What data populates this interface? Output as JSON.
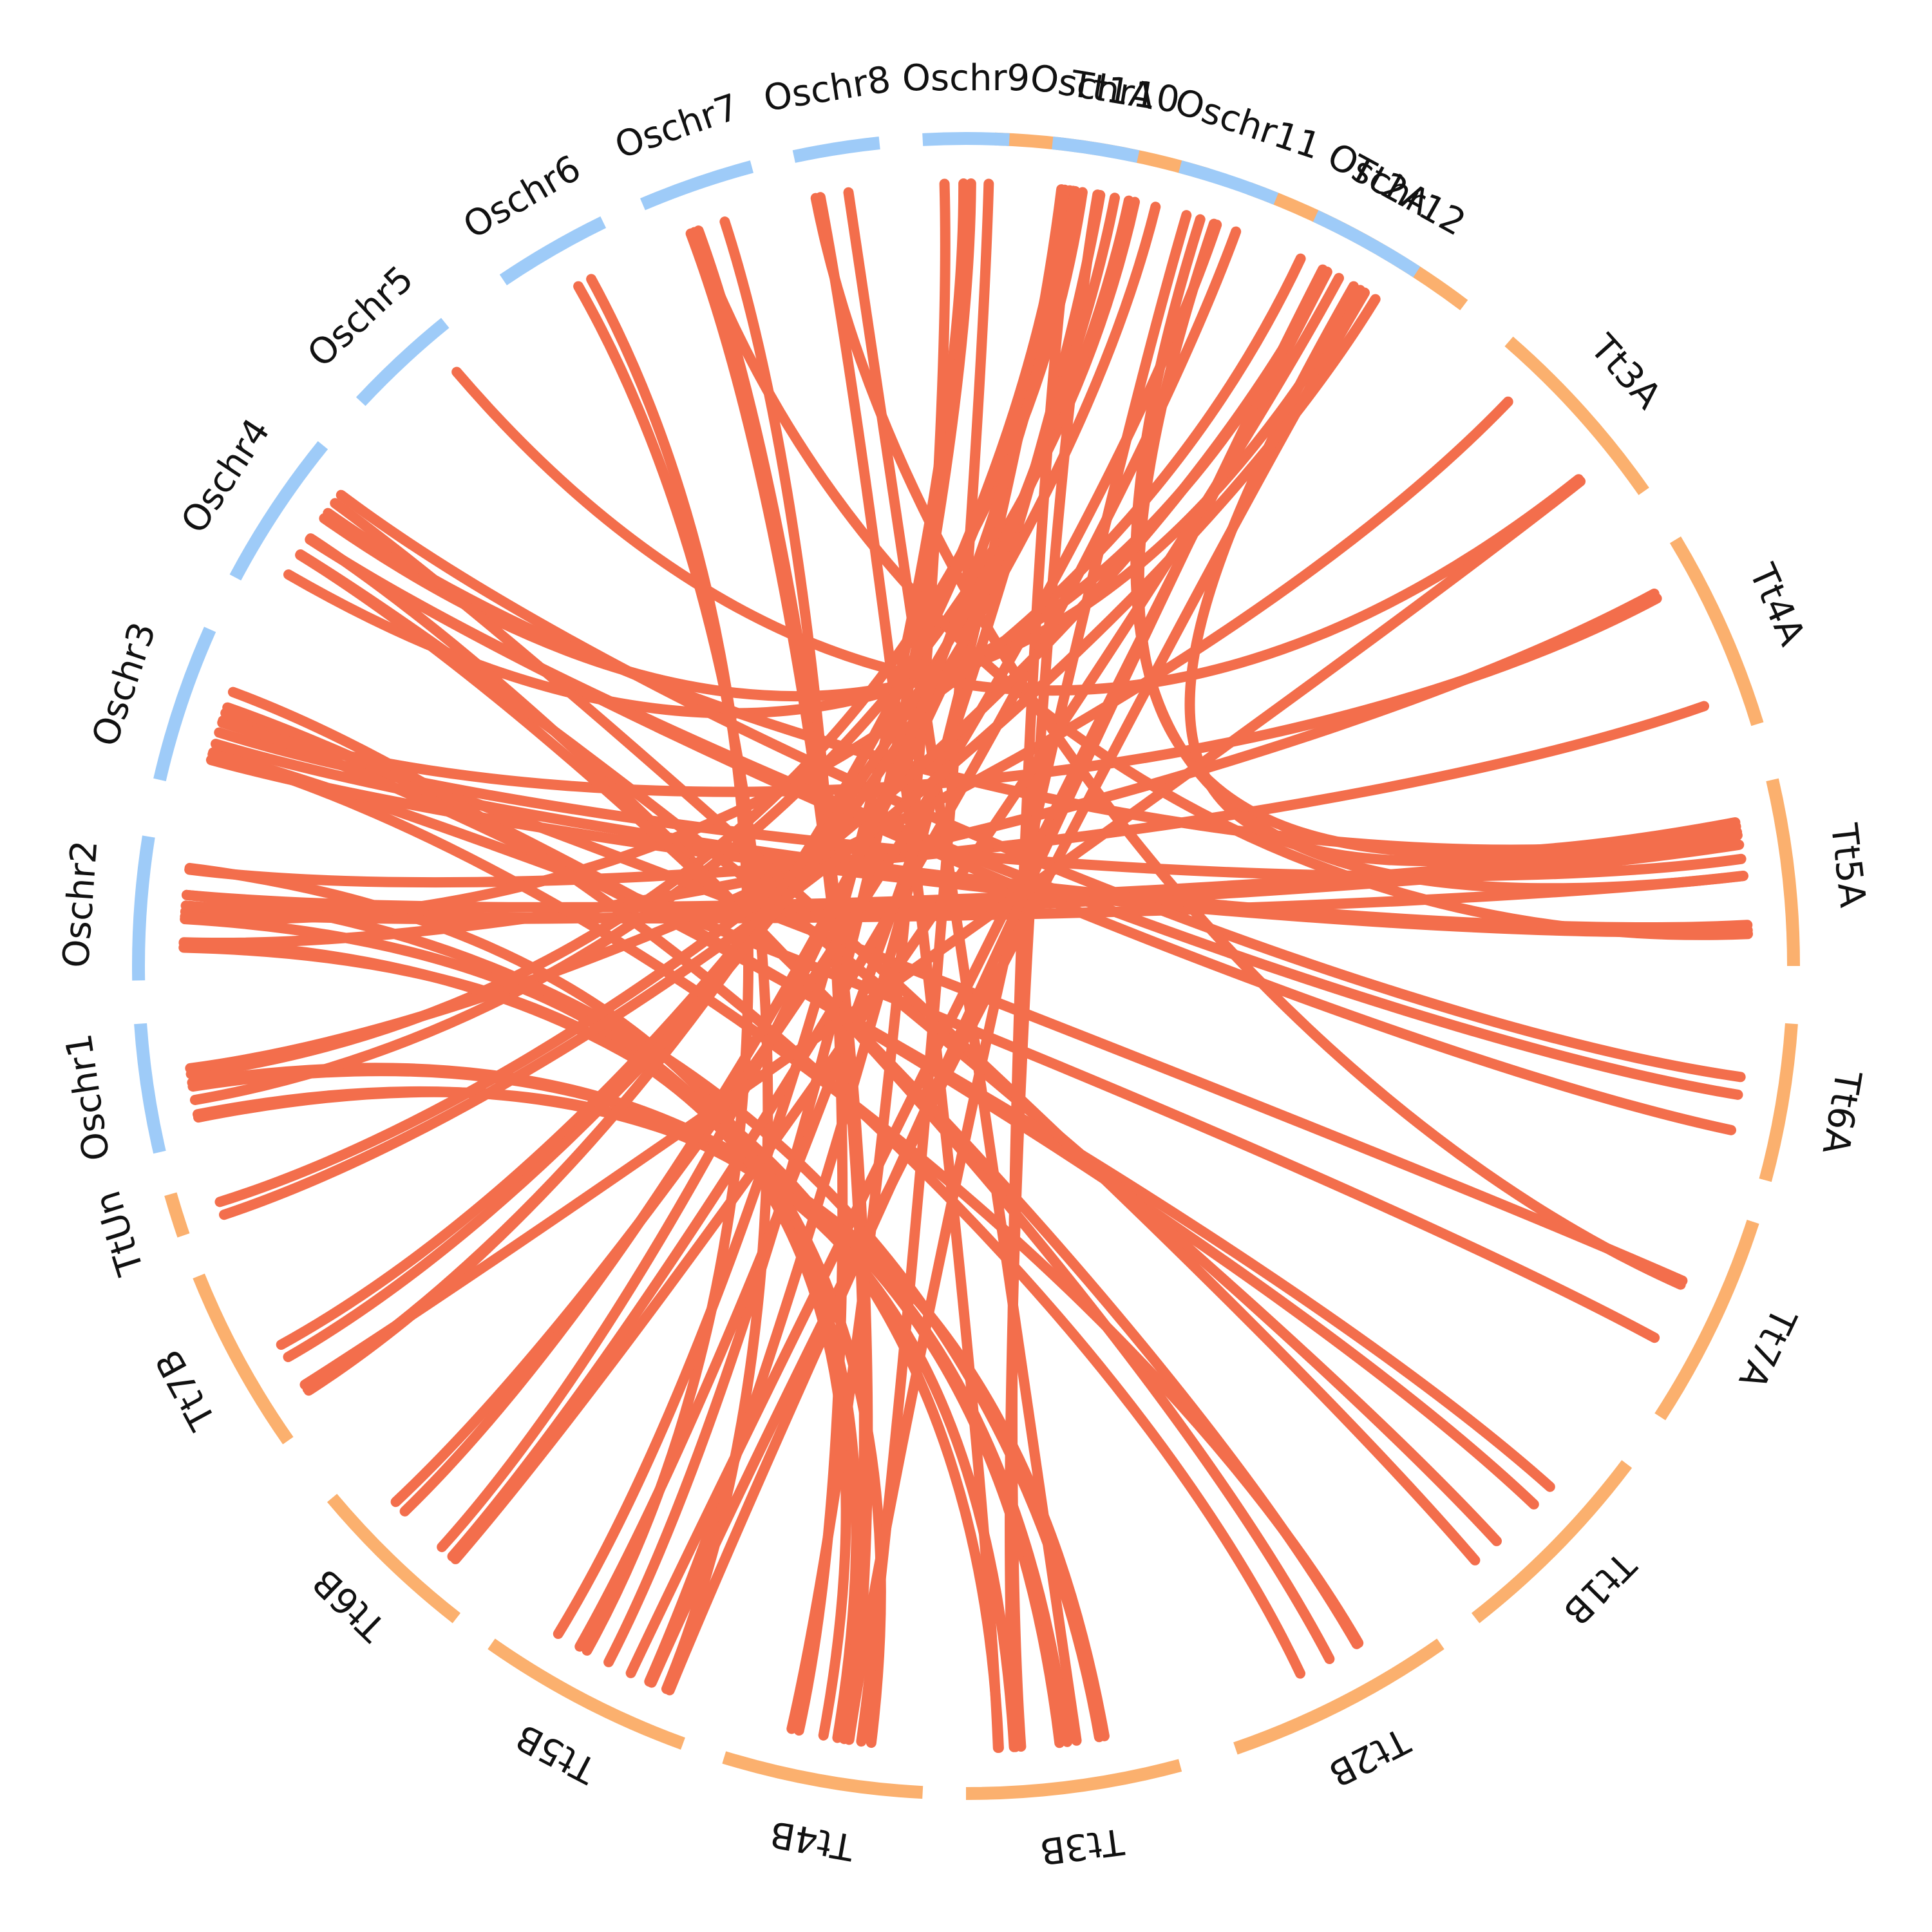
{
  "chart_data": {
    "type": "circos",
    "colors": {
      "rice_chromosomes": "#9ecbf8",
      "wheat_chromosomes": "#fbb06e",
      "links": "#f36e4c",
      "labels": "#111111"
    },
    "chromosomes": [
      {
        "label": "Tt1A",
        "group": "wheat"
      },
      {
        "label": "Tt2A",
        "group": "wheat"
      },
      {
        "label": "Tt3A",
        "group": "wheat"
      },
      {
        "label": "Tt4A",
        "group": "wheat"
      },
      {
        "label": "Tt5A",
        "group": "wheat"
      },
      {
        "label": "Tt6A",
        "group": "wheat"
      },
      {
        "label": "Tt7A",
        "group": "wheat"
      },
      {
        "label": "Tt1B",
        "group": "wheat"
      },
      {
        "label": "Tt2B",
        "group": "wheat"
      },
      {
        "label": "Tt3B",
        "group": "wheat"
      },
      {
        "label": "Tt4B",
        "group": "wheat"
      },
      {
        "label": "Tt5B",
        "group": "wheat"
      },
      {
        "label": "Tt6B",
        "group": "wheat"
      },
      {
        "label": "Tt7B",
        "group": "wheat"
      },
      {
        "label": "TtUn",
        "group": "wheat"
      },
      {
        "label": "Oschr1",
        "group": "rice"
      },
      {
        "label": "Oschr2",
        "group": "rice"
      },
      {
        "label": "Oschr3",
        "group": "rice"
      },
      {
        "label": "Oschr4",
        "group": "rice"
      },
      {
        "label": "Oschr5",
        "group": "rice"
      },
      {
        "label": "Oschr6",
        "group": "rice"
      },
      {
        "label": "Oschr7",
        "group": "rice"
      },
      {
        "label": "Oschr8",
        "group": "rice"
      },
      {
        "label": "Oschr9",
        "group": "rice"
      },
      {
        "label": "Oschr10",
        "group": "rice"
      },
      {
        "label": "Oschr11",
        "group": "rice"
      },
      {
        "label": "Oschr12",
        "group": "rice"
      }
    ],
    "links": [
      {
        "from": "Oschr1",
        "to": "Tt3B",
        "count": 4
      },
      {
        "from": "Oschr1",
        "to": "Tt1A",
        "count": 2
      },
      {
        "from": "Oschr1",
        "to": "Tt3A",
        "count": 1
      },
      {
        "from": "Oschr2",
        "to": "Tt5A",
        "count": 3
      },
      {
        "from": "Oschr2",
        "to": "Tt4A",
        "count": 2
      },
      {
        "from": "Oschr2",
        "to": "Tt4B",
        "count": 3
      },
      {
        "from": "Oschr2",
        "to": "Tt3B",
        "count": 2
      },
      {
        "from": "Oschr2",
        "to": "Tt2A",
        "count": 1
      },
      {
        "from": "Oschr3",
        "to": "Tt7A",
        "count": 2
      },
      {
        "from": "Oschr3",
        "to": "Tt5A",
        "count": 3
      },
      {
        "from": "Oschr3",
        "to": "Tt1B",
        "count": 2
      },
      {
        "from": "Oschr3",
        "to": "Tt2B",
        "count": 2
      },
      {
        "from": "Oschr3",
        "to": "Tt4A",
        "count": 1
      },
      {
        "from": "Oschr4",
        "to": "Tt2A",
        "count": 2
      },
      {
        "from": "Oschr4",
        "to": "Tt6A",
        "count": 3
      },
      {
        "from": "Oschr4",
        "to": "Tt2B",
        "count": 2
      },
      {
        "from": "Oschr4",
        "to": "Tt5A",
        "count": 1
      },
      {
        "from": "Oschr4",
        "to": "Tt1B",
        "count": 2
      },
      {
        "from": "Oschr5",
        "to": "Tt3A",
        "count": 1
      },
      {
        "from": "Oschr6",
        "to": "Tt5B",
        "count": 2
      },
      {
        "from": "Oschr7",
        "to": "Tt4B",
        "count": 3
      },
      {
        "from": "Oschr7",
        "to": "Tt5A",
        "count": 1
      },
      {
        "from": "Oschr8",
        "to": "Tt7A",
        "count": 1
      },
      {
        "from": "Oschr8",
        "to": "Tt3B",
        "count": 2
      },
      {
        "from": "Oschr9",
        "to": "Tt5B",
        "count": 2
      },
      {
        "from": "Oschr9",
        "to": "Tt4B",
        "count": 2
      },
      {
        "from": "Oschr10",
        "to": "Tt5B",
        "count": 2
      },
      {
        "from": "Oschr10",
        "to": "Tt3B",
        "count": 2
      },
      {
        "from": "Oschr10",
        "to": "Tt7B",
        "count": 2
      },
      {
        "from": "Oschr11",
        "to": "Tt6B",
        "count": 2
      },
      {
        "from": "Oschr11",
        "to": "Tt5A",
        "count": 2
      },
      {
        "from": "Oschr11",
        "to": "Tt4B",
        "count": 1
      },
      {
        "from": "Oschr12",
        "to": "Tt5B",
        "count": 3
      },
      {
        "from": "Oschr12",
        "to": "Tt5A",
        "count": 1
      },
      {
        "from": "Oschr12",
        "to": "Tt6B",
        "count": 1
      },
      {
        "from": "TtUn",
        "to": "Tt2A",
        "count": 2
      },
      {
        "from": "Tt7B",
        "to": "Tt1A",
        "count": 2
      },
      {
        "from": "Tt6B",
        "to": "Tt1A",
        "count": 2
      },
      {
        "from": "Tt7B",
        "to": "Tt3A",
        "count": 1
      }
    ]
  }
}
